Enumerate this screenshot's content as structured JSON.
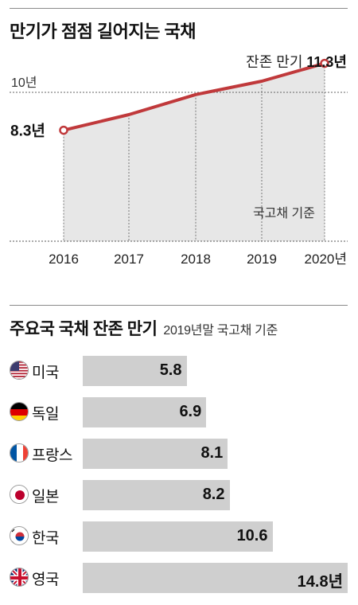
{
  "section1": {
    "title": "만기가 점점 길어지는 국채",
    "reference_label": "10년",
    "note": "국고채 기준",
    "start_label": "8.3년",
    "end_label_prefix": "잔존 만기",
    "end_label_value": "11.3년"
  },
  "section2": {
    "title": "주요국 국채 잔존 만기",
    "subtitle": "2019년말 국고채 기준"
  },
  "colors": {
    "line": "#c0393b",
    "area": "#e7e7e7",
    "bar": "#cfcfcf",
    "rule": "#8a8a8a"
  },
  "chart_data": [
    {
      "type": "area",
      "x": [
        "2016",
        "2017",
        "2018",
        "2019",
        "2020"
      ],
      "x_tick_labels": [
        "2016",
        "2017",
        "2018",
        "2019",
        "2020년"
      ],
      "values": [
        8.3,
        9.0,
        9.9,
        10.5,
        11.3
      ],
      "reference_line": 10,
      "ylim": [
        6.4,
        12
      ]
    },
    {
      "type": "bar",
      "categories": [
        "미국",
        "독일",
        "프랑스",
        "일본",
        "한국",
        "영국"
      ],
      "flags": [
        "us-flag",
        "germany-flag",
        "france-flag",
        "japan-flag",
        "korea-flag",
        "uk-flag"
      ],
      "values": [
        5.8,
        6.9,
        8.1,
        8.2,
        10.6,
        14.8
      ],
      "value_labels": [
        "5.8",
        "6.9",
        "8.1",
        "8.2",
        "10.6",
        "14.8년"
      ],
      "xlim": [
        0,
        14.8
      ]
    }
  ]
}
